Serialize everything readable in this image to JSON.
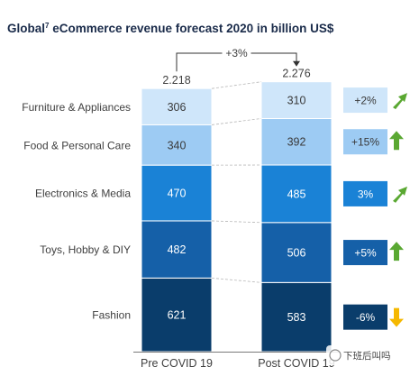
{
  "chart_data": {
    "type": "bar",
    "stacked": true,
    "title_pre": "Global",
    "title_sup": "7",
    "title_post": " eCommerce revenue forecast 2020 in billion US$",
    "categories": [
      "Pre COVID 19",
      "Post COVID 19"
    ],
    "totals": [
      "2.218",
      "2.276"
    ],
    "total_change": "+3%",
    "segments": [
      {
        "name": "Fashion",
        "color": "#0a3d6b",
        "values": [
          621,
          583
        ],
        "change": "-6%",
        "change_bg": "#0a3d6b",
        "arrow": "down",
        "arrow_color": "#f5b800"
      },
      {
        "name": "Toys, Hobby & DIY",
        "color": "#1560a8",
        "values": [
          482,
          506
        ],
        "change": "+5%",
        "change_bg": "#1560a8",
        "arrow": "up",
        "arrow_color": "#5aa832"
      },
      {
        "name": "Electronics & Media",
        "color": "#1a82d6",
        "values": [
          470,
          485
        ],
        "change": "3%",
        "change_bg": "#1a82d6",
        "arrow": "up-right",
        "arrow_color": "#5aa832"
      },
      {
        "name": "Food & Personal Care",
        "color": "#9dcbf3",
        "values": [
          340,
          392
        ],
        "change": "+15%",
        "change_bg": "#9dcbf3",
        "arrow": "up",
        "arrow_color": "#5aa832"
      },
      {
        "name": "Furniture & Appliances",
        "color": "#cfe6fa",
        "values": [
          306,
          310
        ],
        "change": "+2%",
        "change_bg": "#cfe6fa",
        "arrow": "up-right",
        "arrow_color": "#5aa832"
      }
    ],
    "label_color_light": "#ffffff",
    "label_color_dark": "#3a3a3a",
    "watermark": "下班后叫吗"
  }
}
